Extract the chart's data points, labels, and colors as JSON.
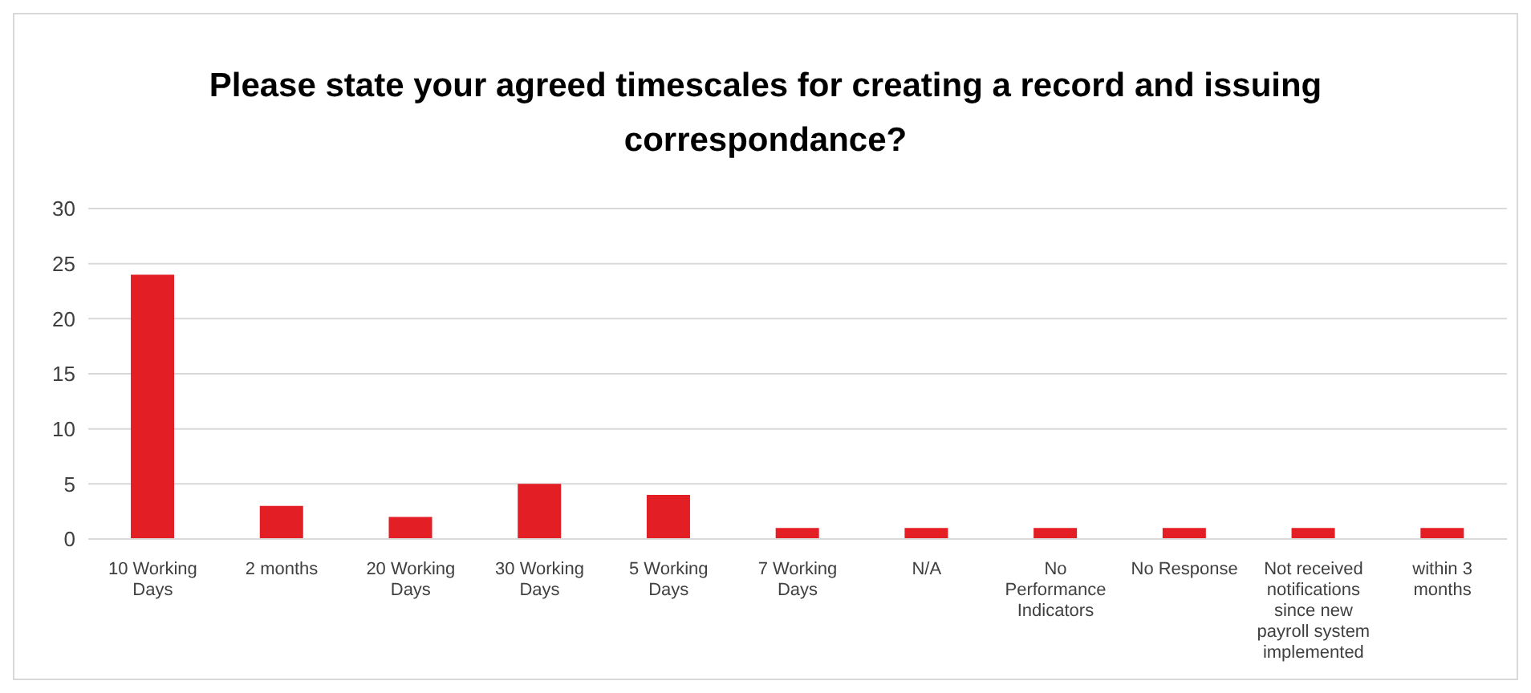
{
  "chart_data": {
    "type": "bar",
    "title": "Please state your agreed timescales for creating a record and issuing correspondance?",
    "categories": [
      "10 Working Days",
      "2 months",
      "20 Working Days",
      "30 Working Days",
      "5 Working Days",
      "7 Working Days",
      "N/A",
      "No Performance Indicators",
      "No Response",
      "Not received notifications since new payroll system implemented",
      "within 3 months"
    ],
    "values": [
      24,
      3,
      2,
      5,
      4,
      1,
      1,
      1,
      1,
      1,
      1
    ],
    "color": "#e31e24",
    "ylim": [
      0,
      30
    ],
    "yticks": [
      0,
      5,
      10,
      15,
      20,
      25,
      30
    ],
    "grid": "y"
  }
}
